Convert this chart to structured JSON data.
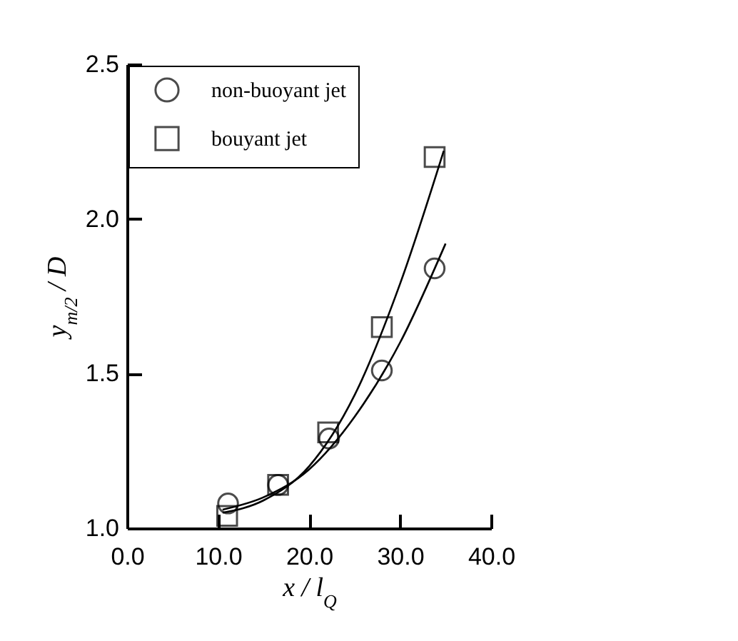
{
  "chart_data": {
    "type": "scatter",
    "xlabel": "x / l$_{Q}$",
    "ylabel": "y$_{m/2}$ / D",
    "xlim": [
      0,
      40
    ],
    "ylim": [
      1.0,
      2.5
    ],
    "xticks": [
      {
        "value": 0,
        "label": "0.0"
      },
      {
        "value": 10,
        "label": "10.0"
      },
      {
        "value": 20,
        "label": "20.0"
      },
      {
        "value": 30,
        "label": "30.0"
      },
      {
        "value": 40,
        "label": "40.0"
      }
    ],
    "yticks": [
      {
        "value": 1.0,
        "label": "1.0"
      },
      {
        "value": 1.5,
        "label": "1.5"
      },
      {
        "value": 2.0,
        "label": "2.0"
      },
      {
        "value": 2.5,
        "label": "2.5"
      }
    ],
    "legend": "top left",
    "grid": false,
    "series": [
      {
        "name": "non-buoyant jet",
        "type": "scatter",
        "marker": "circle",
        "color": "#000000",
        "x": [
          11.1,
          16.6,
          22.2,
          28.0,
          33.8
        ],
        "values": [
          1.08,
          1.14,
          1.29,
          1.51,
          1.84
        ]
      },
      {
        "name": "bouyant jet",
        "type": "scatter",
        "marker": "square",
        "color": "#000000",
        "x": [
          11.0,
          16.6,
          22.1,
          28.0,
          33.8
        ],
        "values": [
          1.04,
          1.14,
          1.31,
          1.65,
          2.2
        ]
      },
      {
        "type": "line",
        "color": "#000000",
        "x": [
          10.5,
          15,
          20,
          25,
          30,
          35
        ],
        "values": [
          1.06,
          1.1,
          1.19,
          1.36,
          1.6,
          1.92
        ]
      },
      {
        "type": "line",
        "color": "#000000",
        "x": [
          10.5,
          15,
          20,
          25,
          30,
          34.8
        ],
        "values": [
          1.05,
          1.09,
          1.2,
          1.43,
          1.79,
          2.22
        ]
      }
    ]
  }
}
